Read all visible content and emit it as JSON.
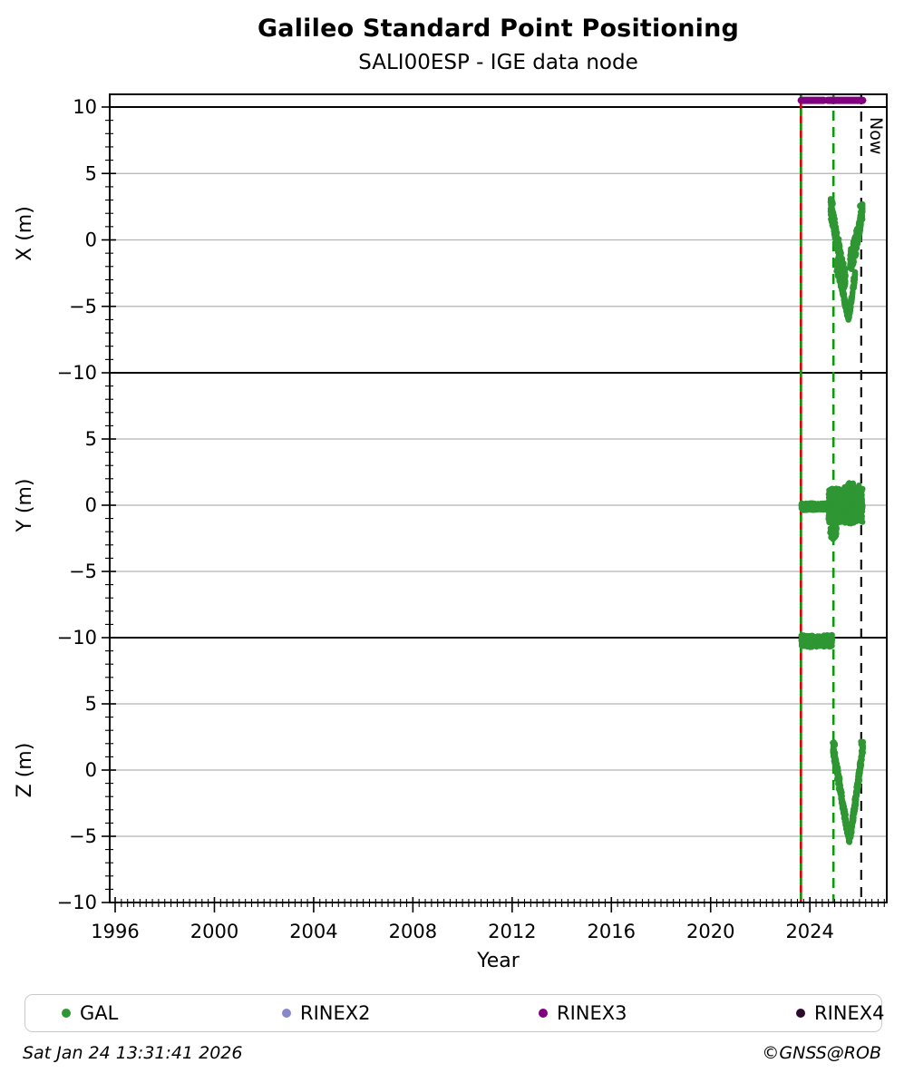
{
  "header": {
    "title": "Galileo Standard Point Positioning",
    "subtitle": "SALI00ESP - IGE data node"
  },
  "footer": {
    "timestamp": "Sat Jan 24 13:31:41 2026",
    "copyright": "©GNSS@ROB"
  },
  "legend": {
    "items": [
      {
        "label": "GAL",
        "color": "#2e9632"
      },
      {
        "label": "RINEX2",
        "color": "#8787cb"
      },
      {
        "label": "RINEX3",
        "color": "#800080"
      },
      {
        "label": "RINEX4",
        "color": "#2b0a2b"
      }
    ]
  },
  "chart_data": {
    "type": "scatter",
    "title": "Galileo Standard Point Positioning",
    "subtitle": "SALI00ESP - IGE data node",
    "xlabel": "Year",
    "xlim": [
      1995.78,
      2027.1
    ],
    "x_major_ticks": [
      1996,
      2000,
      2004,
      2008,
      2012,
      2016,
      2020,
      2024
    ],
    "x_minor_step": 0.25,
    "grid": "horizontal-only",
    "grid_values": [
      5,
      0,
      -5
    ],
    "solid_boundary_values": [
      10,
      -10
    ],
    "now_label": "Now",
    "colors": {
      "scatter_green": "#2e9632",
      "line_green": "#0a9a0a",
      "line_red": "#dd0000",
      "line_black": "#111111",
      "grid_gray": "#b3b3b3",
      "rinex3_purple": "#800080"
    },
    "vlines": [
      {
        "name": "data-start-line",
        "year": 2023.64,
        "type": "red-solid-green-dashed"
      },
      {
        "name": "event-line",
        "year": 2024.95,
        "type": "green-dashed"
      },
      {
        "name": "now-line",
        "year": 2026.07,
        "type": "black-dashed",
        "label": "Now"
      }
    ],
    "availability_bars": [
      {
        "series": "RINEX3",
        "color": "#800080",
        "panel": 0,
        "value": 10.5,
        "segments": [
          [
            2023.65,
            2024.56
          ],
          [
            2024.73,
            2026.13
          ]
        ]
      }
    ],
    "panels": [
      {
        "ylabel": "X (m)",
        "ylim": [
          -10,
          10.96
        ],
        "ytick_labels": [
          10,
          5,
          0,
          -5,
          -10
        ],
        "series": [
          {
            "name": "GAL",
            "color": "#2e9632",
            "clusters": [
              {
                "desc": "descending branch",
                "path": [
                  [
                    2024.83,
                    2.4
                  ],
                  [
                    2024.97,
                    1.1
                  ],
                  [
                    2025.12,
                    -0.4
                  ],
                  [
                    2025.3,
                    -2.0
                  ],
                  [
                    2025.44,
                    -3.1
                  ]
                ],
                "halfwidth": [
                  0.75,
                  1.0
                ],
                "n": 430
              },
              {
                "desc": "deep tail down",
                "path": [
                  [
                    2025.08,
                    -1.8
                  ],
                  [
                    2025.3,
                    -3.6
                  ],
                  [
                    2025.5,
                    -5.6
                  ],
                  [
                    2025.56,
                    -6.0
                  ]
                ],
                "halfwidth": [
                  0.6,
                  0.25
                ],
                "n": 160
              },
              {
                "desc": "deep tail up",
                "path": [
                  [
                    2025.58,
                    -5.7
                  ],
                  [
                    2025.7,
                    -4.2
                  ],
                  [
                    2025.82,
                    -2.6
                  ]
                ],
                "halfwidth": [
                  0.3,
                  0.5
                ],
                "n": 80
              },
              {
                "desc": "ascending branch",
                "path": [
                  [
                    2025.62,
                    -1.8
                  ],
                  [
                    2025.8,
                    -0.7
                  ],
                  [
                    2025.98,
                    0.7
                  ],
                  [
                    2026.12,
                    2.3
                  ]
                ],
                "halfwidth": [
                  1.05,
                  0.65
                ],
                "n": 420
              },
              {
                "desc": "sparse top left",
                "path": [
                  [
                    2024.84,
                    2.9
                  ],
                  [
                    2024.92,
                    2.7
                  ]
                ],
                "halfwidth": [
                  0.25,
                  0.25
                ],
                "n": 14
              },
              {
                "desc": "sparse top right",
                "path": [
                  [
                    2026.0,
                    2.6
                  ],
                  [
                    2026.13,
                    2.5
                  ]
                ],
                "halfwidth": [
                  0.2,
                  0.2
                ],
                "n": 10
              }
            ]
          }
        ]
      },
      {
        "ylabel": "Y (m)",
        "ylim": [
          -10,
          10
        ],
        "ytick_labels": [
          5,
          0,
          -5,
          -10
        ],
        "series": [
          {
            "name": "GAL",
            "color": "#2e9632",
            "clusters": [
              {
                "desc": "thin band at zero",
                "path": [
                  [
                    2023.66,
                    -0.12
                  ],
                  [
                    2024.3,
                    -0.1
                  ],
                  [
                    2024.74,
                    -0.08
                  ]
                ],
                "halfwidth": [
                  0.28,
                  0.28
                ],
                "n": 600
              },
              {
                "desc": "wide blob",
                "path": [
                  [
                    2024.74,
                    -0.1
                  ],
                  [
                    2025.1,
                    0.05
                  ],
                  [
                    2025.6,
                    -0.05
                  ],
                  [
                    2026.12,
                    0.1
                  ]
                ],
                "halfwidth": [
                  1.45,
                  1.45
                ],
                "n": 1000
              },
              {
                "desc": "lower lobe",
                "path": [
                  [
                    2024.8,
                    -2.0
                  ],
                  [
                    2024.95,
                    -2.3
                  ],
                  [
                    2025.08,
                    -1.8
                  ]
                ],
                "halfwidth": [
                  0.45,
                  0.45
                ],
                "n": 55
              },
              {
                "desc": "upper specks",
                "path": [
                  [
                    2025.55,
                    1.6
                  ],
                  [
                    2025.75,
                    1.55
                  ]
                ],
                "halfwidth": [
                  0.2,
                  0.2
                ],
                "n": 14
              }
            ]
          }
        ]
      },
      {
        "ylabel": "Z (m)",
        "ylim": [
          -10,
          10
        ],
        "ytick_labels": [
          5,
          0,
          -5,
          -10
        ],
        "series": [
          {
            "name": "GAL",
            "color": "#2e9632",
            "clusters": [
              {
                "desc": "clipped band near +10",
                "path": [
                  [
                    2023.66,
                    9.78
                  ],
                  [
                    2024.2,
                    9.7
                  ],
                  [
                    2024.9,
                    9.8
                  ]
                ],
                "halfwidth": [
                  0.48,
                  0.48
                ],
                "n": 600
              },
              {
                "desc": "descending branch",
                "path": [
                  [
                    2024.93,
                    1.6
                  ],
                  [
                    2025.12,
                    -0.3
                  ],
                  [
                    2025.32,
                    -2.5
                  ],
                  [
                    2025.5,
                    -4.5
                  ],
                  [
                    2025.6,
                    -5.2
                  ]
                ],
                "halfwidth": [
                  0.6,
                  0.4
                ],
                "n": 420
              },
              {
                "desc": "ascending branch",
                "path": [
                  [
                    2025.63,
                    -4.9
                  ],
                  [
                    2025.78,
                    -3.1
                  ],
                  [
                    2025.93,
                    -1.1
                  ],
                  [
                    2026.05,
                    0.5
                  ],
                  [
                    2026.14,
                    1.9
                  ]
                ],
                "halfwidth": [
                  0.5,
                  0.5
                ],
                "n": 360
              },
              {
                "desc": "sparse top left",
                "path": [
                  [
                    2024.96,
                    2.1
                  ],
                  [
                    2025.02,
                    1.95
                  ]
                ],
                "halfwidth": [
                  0.15,
                  0.15
                ],
                "n": 6
              },
              {
                "desc": "sparse top right",
                "path": [
                  [
                    2026.06,
                    2.15
                  ],
                  [
                    2026.15,
                    1.7
                  ]
                ],
                "halfwidth": [
                  0.2,
                  0.2
                ],
                "n": 8
              }
            ]
          }
        ]
      }
    ]
  }
}
